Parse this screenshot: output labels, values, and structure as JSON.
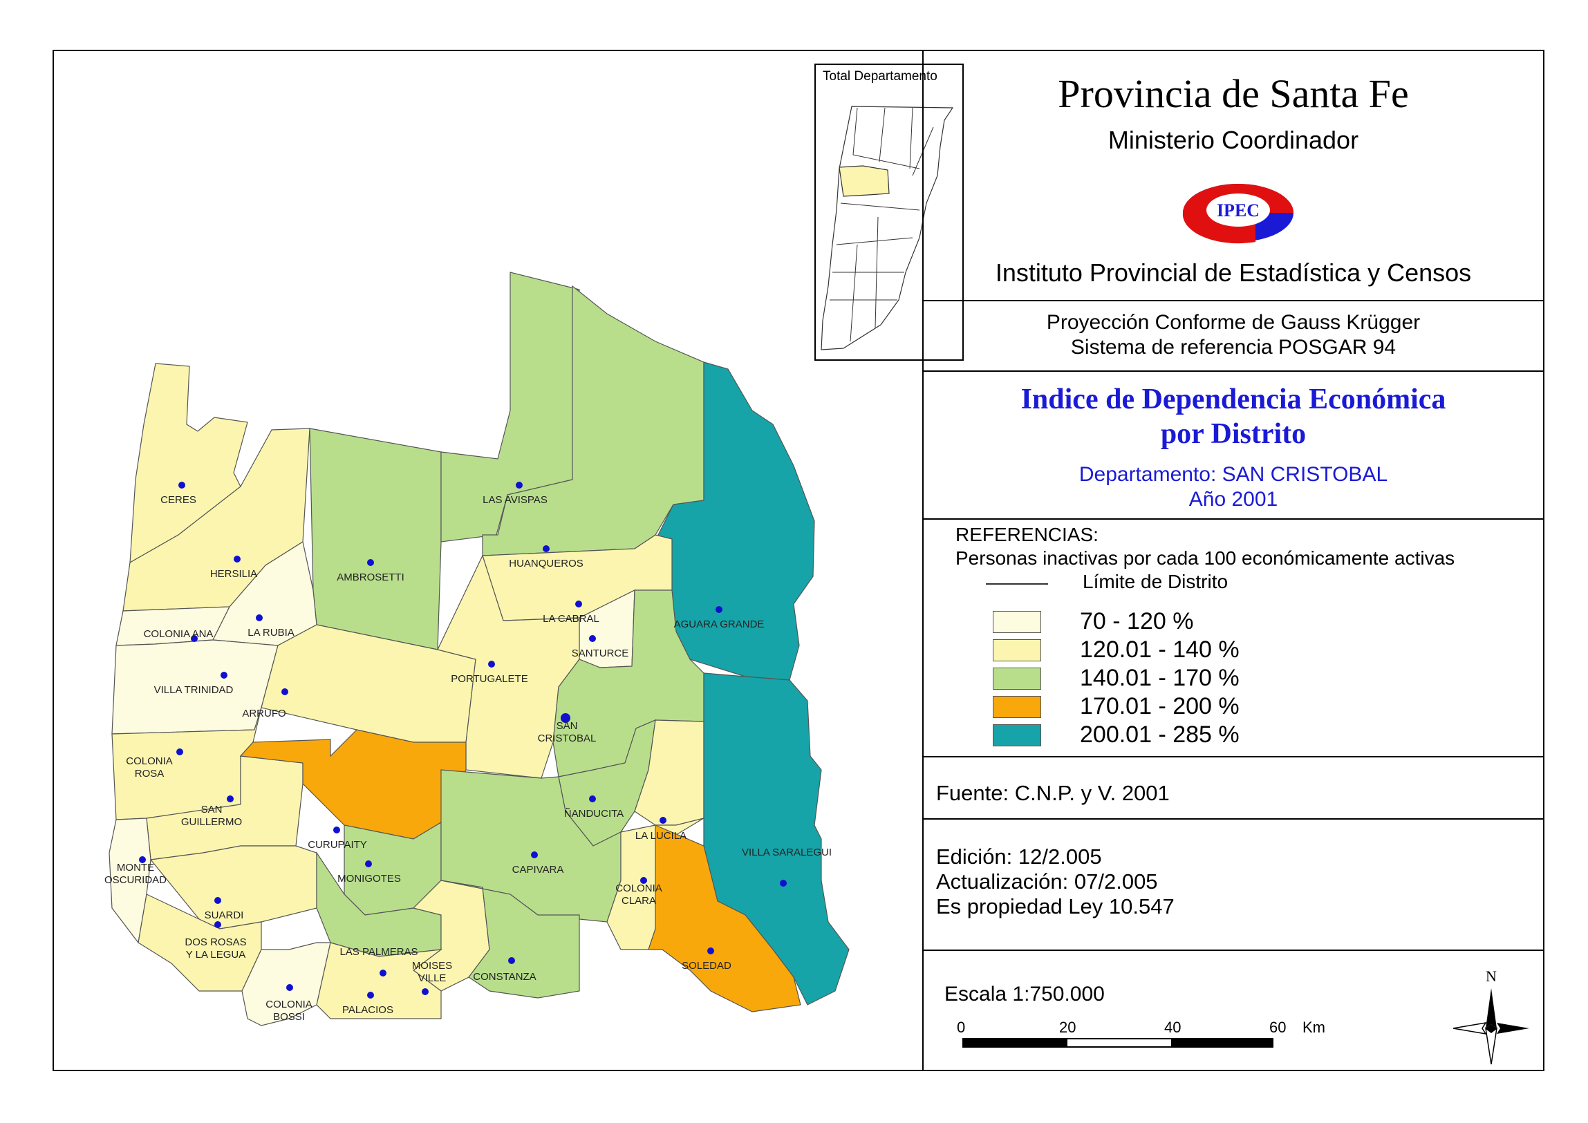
{
  "header": {
    "title": "Provincia de Santa Fe",
    "ministry": "Ministerio Coordinador",
    "logo_text": "IPEC",
    "institute": "Instituto Provincial de Estadística y Censos"
  },
  "projection": {
    "line1": "Proyección Conforme de Gauss Krügger",
    "line2": "Sistema de referencia POSGAR 94"
  },
  "map_title": {
    "line1": "Indice de Dependencia Económica",
    "line2": "por Distrito",
    "department": "Departamento:  SAN CRISTOBAL",
    "year": "Año 2001"
  },
  "inset": {
    "title": "Total Departamento"
  },
  "legend": {
    "heading": "REFERENCIAS:",
    "subtitle": "Personas inactivas por cada 100 económicamente activas",
    "boundary_label": "Límite de  Distrito",
    "classes": [
      {
        "label": "70 - 120 %",
        "color": "#fdfbe0"
      },
      {
        "label": "120.01 - 140 %",
        "color": "#fbf5b0"
      },
      {
        "label": "140.01 - 170 %",
        "color": "#b8de8c"
      },
      {
        "label": "170.01 - 200 %",
        "color": "#f9a80c"
      },
      {
        "label": "200.01 - 285 %",
        "color": "#16a4a8"
      }
    ]
  },
  "source": "Fuente:  C.N.P. y V. 2001",
  "edition": {
    "edicion": "Edición:  12/2.005",
    "actualizacion": "Actualización:  07/2.005",
    "propiedad": "Es propiedad Ley 10.547"
  },
  "scale": {
    "label": "Escala 1:750.000",
    "ticks": [
      "0",
      "20",
      "40",
      "60"
    ],
    "unit": "Km"
  },
  "north": "N",
  "districts": [
    {
      "name": "CERES",
      "class": 1
    },
    {
      "name": "HERSILIA",
      "class": 1
    },
    {
      "name": "AMBROSETTI",
      "class": 2
    },
    {
      "name": "LAS AVISPAS",
      "class": 2
    },
    {
      "name": "HUANQUEROS",
      "class": 2
    },
    {
      "name": "AGUARA GRANDE",
      "class": 4
    },
    {
      "name": "COLONIA ANA",
      "class": 0
    },
    {
      "name": "LA RUBIA",
      "class": 0
    },
    {
      "name": "LA CABRAL",
      "class": 1
    },
    {
      "name": "SANTURCE",
      "class": 0
    },
    {
      "name": "VILLA TRINIDAD",
      "class": 0
    },
    {
      "name": "ARRUFO",
      "class": 1
    },
    {
      "name": "PORTUGALETE",
      "class": 1
    },
    {
      "name": "SAN CRISTOBAL",
      "class": 2
    },
    {
      "name": "COLONIA ROSA",
      "class": 1
    },
    {
      "name": "SAN GUILLERMO",
      "class": 1
    },
    {
      "name": "CURUPAITY",
      "class": 3
    },
    {
      "name": "ÑANDUCITA",
      "class": 2
    },
    {
      "name": "LA LUCILA",
      "class": 1
    },
    {
      "name": "MONTE OSCURIDAD",
      "class": 0
    },
    {
      "name": "MONIGOTES",
      "class": 2
    },
    {
      "name": "CAPIVARA",
      "class": 2
    },
    {
      "name": "VILLA SARALEGUI",
      "class": 4
    },
    {
      "name": "SUARDI",
      "class": 1
    },
    {
      "name": "COLONIA CLARA",
      "class": 1
    },
    {
      "name": "DOS ROSAS Y LA LEGUA",
      "class": 1
    },
    {
      "name": "SOLEDAD",
      "class": 3
    },
    {
      "name": "LAS PALMERAS",
      "class": 2
    },
    {
      "name": "COLONIA BOSSI",
      "class": 0
    },
    {
      "name": "MOISES VILLE",
      "class": 1
    },
    {
      "name": "CONSTANZA",
      "class": 2
    },
    {
      "name": "PALACIOS",
      "class": 1
    }
  ]
}
